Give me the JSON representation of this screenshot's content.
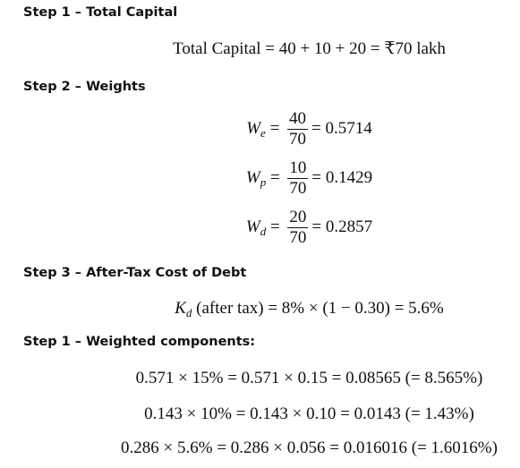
{
  "steps": [
    {
      "heading": "Step 1 – Total Capital",
      "equation": "Total Capital = 40 + 10 + 20 = ₹70 lakh"
    },
    {
      "heading": "Step 2 – Weights",
      "weights": [
        {
          "symbol": "W",
          "sub": "e",
          "eq": "=",
          "numerator": "40",
          "denominator": "70",
          "rhs": "= 0.5714"
        },
        {
          "symbol": "W",
          "sub": "p",
          "eq": "=",
          "numerator": "10",
          "denominator": "70",
          "rhs": "= 0.1429"
        },
        {
          "symbol": "W",
          "sub": "d",
          "eq": "=",
          "numerator": "20",
          "denominator": "70",
          "rhs": "= 0.2857"
        }
      ]
    },
    {
      "heading": "Step 3 – After-Tax Cost of Debt",
      "symbol": "K",
      "sub": "d",
      "rhs": "(after tax) = 8% × (1 − 0.30) = 5.6%"
    },
    {
      "heading": "Step 1 – Weighted components:",
      "lines": [
        "0.571 × 15% = 0.571 × 0.15 = 0.08565  (= 8.565%)",
        "0.143 × 10% = 0.143 × 0.10 = 0.0143  (= 1.43%)",
        "0.286 × 5.6% = 0.286 × 0.056 = 0.016016  (= 1.6016%)"
      ]
    }
  ]
}
